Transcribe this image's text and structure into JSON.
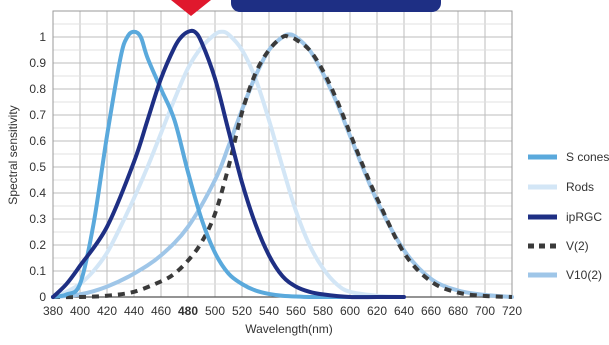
{
  "chart_data": {
    "type": "line",
    "title": "",
    "xlabel": "Wavelength(nm)",
    "ylabel": "Spectral sensitivity",
    "xlim": [
      380,
      720
    ],
    "ylim": [
      0,
      1.1
    ],
    "x_ticks": [
      "380",
      "400",
      "420",
      "440",
      "460",
      "480",
      "500",
      "520",
      "540",
      "560",
      "580",
      "600",
      "620",
      "640",
      "660",
      "680",
      "700",
      "720"
    ],
    "highlight_tick": "480",
    "y_ticks": [
      "0",
      "0.1",
      "0.2",
      "0.3",
      "0.4",
      "0.5",
      "0.6",
      "0.7",
      "0.8",
      "0.9",
      "1"
    ],
    "grid": true,
    "legend_position": "right",
    "series": [
      {
        "name": "S cones",
        "color": "#5aa9dc",
        "dash": "solid",
        "x": [
          380,
          390,
          400,
          410,
          420,
          430,
          435,
          440,
          445,
          450,
          460,
          470,
          480,
          490,
          500,
          510,
          520,
          530,
          540,
          550,
          560,
          570,
          580,
          600,
          620
        ],
        "y": [
          0,
          0.01,
          0.05,
          0.28,
          0.62,
          0.92,
          1.0,
          1.02,
          1.0,
          0.92,
          0.8,
          0.68,
          0.48,
          0.3,
          0.17,
          0.09,
          0.05,
          0.025,
          0.012,
          0.005,
          0.002,
          0,
          0,
          0,
          0
        ]
      },
      {
        "name": "Rods",
        "color": "#d3e6f6",
        "dash": "solid",
        "x": [
          380,
          390,
          400,
          410,
          420,
          430,
          440,
          450,
          460,
          470,
          480,
          490,
          500,
          505,
          510,
          520,
          530,
          540,
          550,
          560,
          570,
          580,
          590,
          600,
          620,
          640
        ],
        "y": [
          0,
          0.02,
          0.05,
          0.1,
          0.17,
          0.27,
          0.38,
          0.5,
          0.63,
          0.76,
          0.88,
          0.96,
          1.01,
          1.02,
          1.01,
          0.95,
          0.84,
          0.68,
          0.5,
          0.33,
          0.2,
          0.11,
          0.05,
          0.02,
          0.005,
          0
        ]
      },
      {
        "name": "ipRGC",
        "color": "#1e2f84",
        "dash": "solid",
        "x": [
          380,
          390,
          400,
          420,
          440,
          450,
          460,
          470,
          475,
          480,
          485,
          490,
          500,
          510,
          520,
          530,
          540,
          550,
          560,
          570,
          580,
          600,
          620,
          640
        ],
        "y": [
          0,
          0.05,
          0.12,
          0.27,
          0.52,
          0.68,
          0.84,
          0.96,
          1.0,
          1.02,
          1.02,
          0.98,
          0.84,
          0.64,
          0.44,
          0.28,
          0.16,
          0.08,
          0.04,
          0.02,
          0.01,
          0,
          0,
          0
        ]
      },
      {
        "name": "V(2)",
        "color": "#3a3a3a",
        "dash": "dashed",
        "x": [
          380,
          400,
          420,
          440,
          460,
          470,
          480,
          490,
          500,
          510,
          520,
          530,
          540,
          550,
          555,
          560,
          570,
          580,
          590,
          600,
          610,
          620,
          640,
          660,
          680,
          700,
          720
        ],
        "y": [
          0,
          0,
          0.005,
          0.02,
          0.06,
          0.09,
          0.14,
          0.21,
          0.32,
          0.5,
          0.71,
          0.86,
          0.95,
          1.0,
          1.0,
          0.99,
          0.95,
          0.87,
          0.76,
          0.63,
          0.5,
          0.38,
          0.17,
          0.06,
          0.017,
          0.004,
          0
        ]
      },
      {
        "name": "V10(2)",
        "color": "#9fc6e8",
        "dash": "solid",
        "x": [
          380,
          400,
          420,
          440,
          460,
          480,
          500,
          510,
          520,
          530,
          540,
          550,
          555,
          560,
          570,
          580,
          590,
          600,
          620,
          640,
          660,
          680,
          700,
          720
        ],
        "y": [
          0,
          0.01,
          0.04,
          0.09,
          0.16,
          0.27,
          0.45,
          0.58,
          0.72,
          0.85,
          0.95,
          1.0,
          1.01,
          1.0,
          0.95,
          0.86,
          0.75,
          0.62,
          0.37,
          0.18,
          0.07,
          0.025,
          0.008,
          0
        ]
      }
    ]
  }
}
